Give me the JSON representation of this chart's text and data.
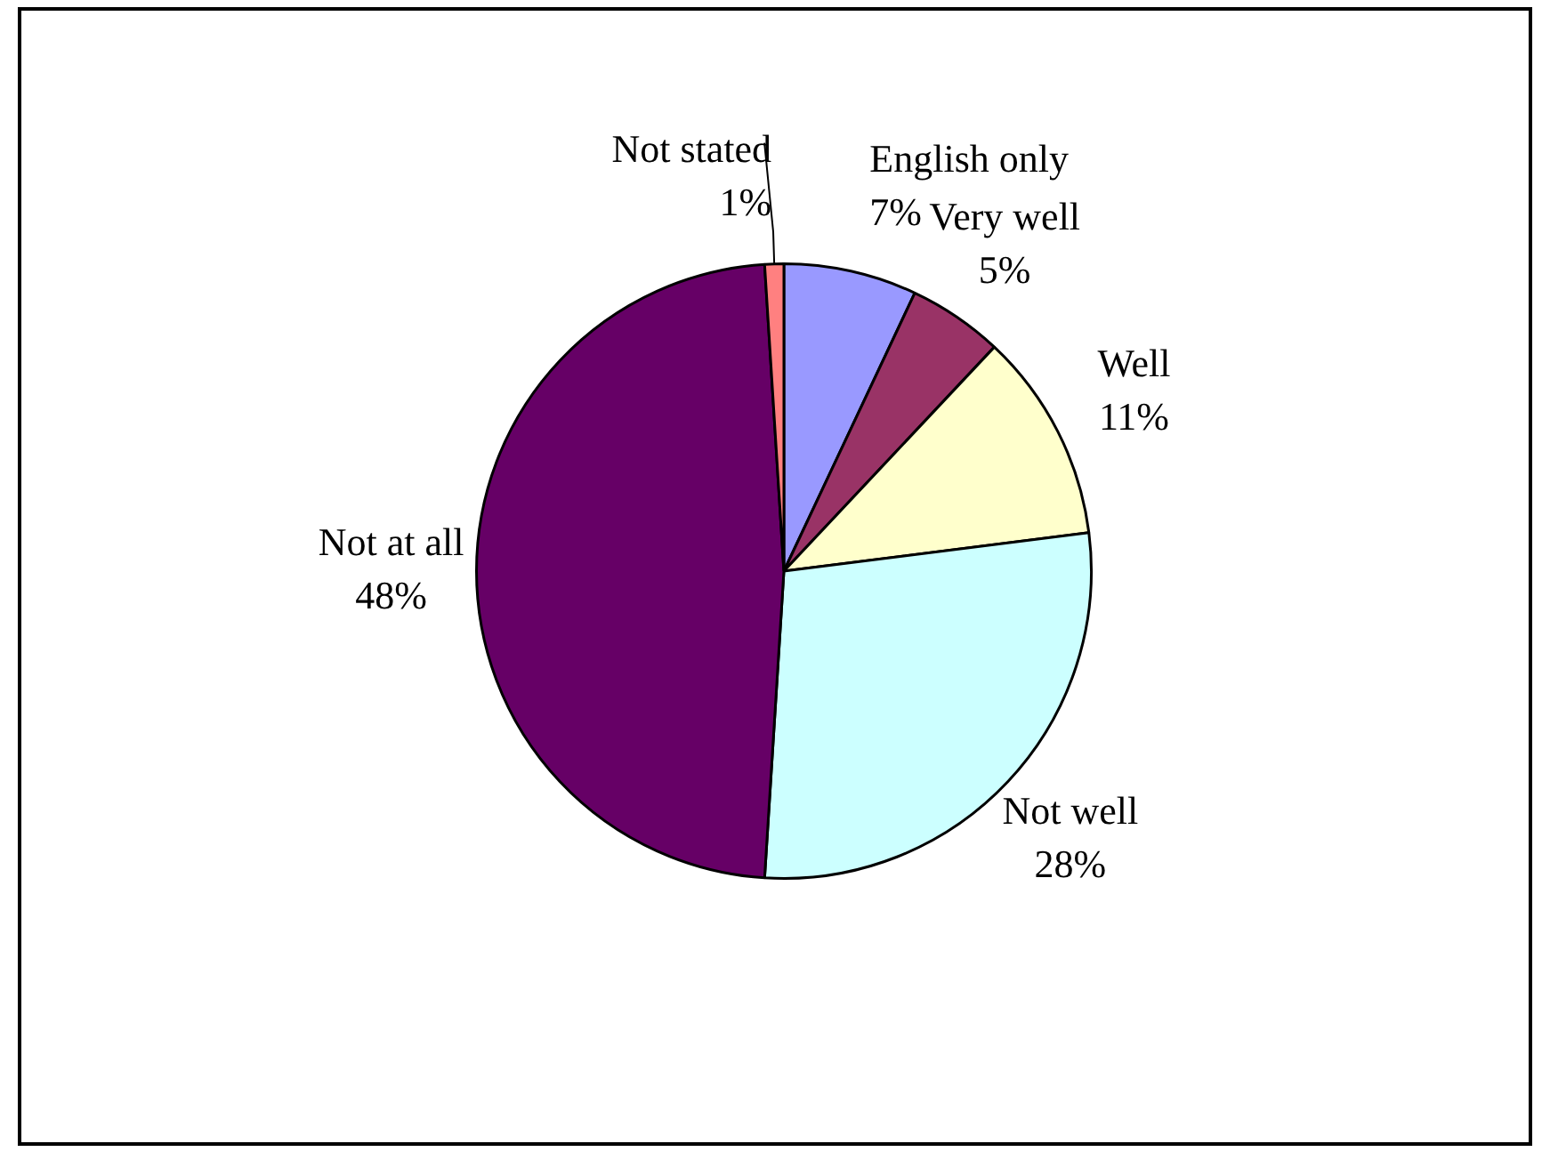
{
  "chart_data": {
    "type": "pie",
    "categories": [
      "English only",
      "Very well",
      "Well",
      "Not well",
      "Not at all",
      "Not stated"
    ],
    "values": [
      7,
      5,
      11,
      28,
      48,
      1
    ],
    "colors": [
      "#9999ff",
      "#993366",
      "#ffffcc",
      "#ccffff",
      "#660066",
      "#ff8080"
    ],
    "value_labels": [
      "7%",
      "5%",
      "11%",
      "28%",
      "48%",
      "1%"
    ],
    "legend": false
  }
}
